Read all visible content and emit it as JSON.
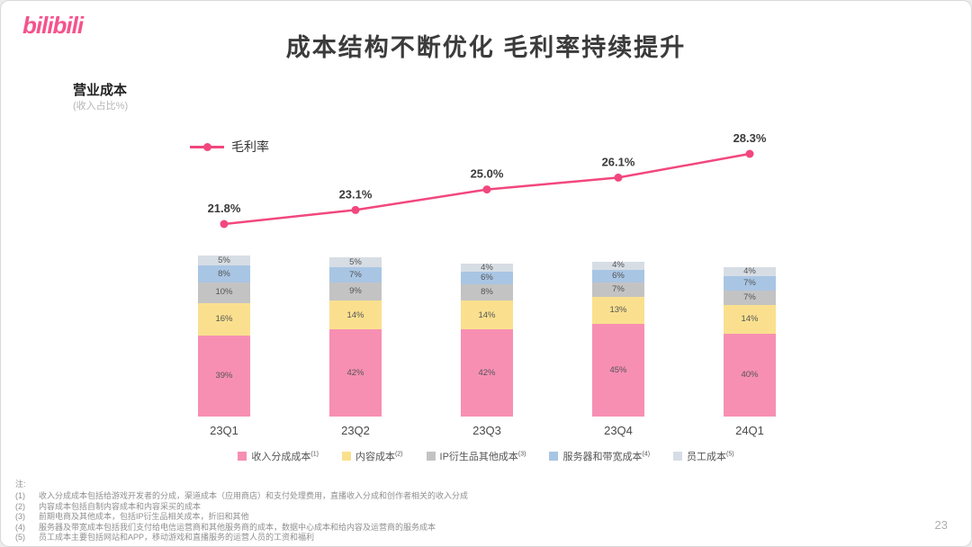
{
  "header": {
    "logo": "bilibili",
    "title": "成本结构不断优化 毛利率持续提升"
  },
  "chart": {
    "label": "营业成本",
    "sublabel": "(收入占比%)"
  },
  "chart_data": {
    "type": "combo",
    "categories": [
      "23Q1",
      "23Q2",
      "23Q3",
      "23Q4",
      "24Q1"
    ],
    "line": {
      "name": "毛利率",
      "values": [
        21.8,
        23.1,
        25.0,
        26.1,
        28.3
      ],
      "labels": [
        "21.8%",
        "23.1%",
        "25.0%",
        "26.1%",
        "28.3%"
      ],
      "color": "#f2477e"
    },
    "bar_series": [
      {
        "key": "revenue-sharing-cost",
        "name": "收入分成成本",
        "sup": "(1)",
        "values": [
          39,
          42,
          42,
          45,
          40
        ],
        "color": "#f78fb3"
      },
      {
        "key": "content-cost",
        "name": "内容成本",
        "sup": "(2)",
        "values": [
          16,
          14,
          14,
          13,
          14
        ],
        "color": "#fae08e"
      },
      {
        "key": "ip-derivatives-other-cost",
        "name": "IP衍生品其他成本",
        "sup": "(3)",
        "values": [
          10,
          9,
          8,
          7,
          7
        ],
        "color": "#c3c3c3"
      },
      {
        "key": "server-bandwidth-cost",
        "name": "服务器和带宽成本",
        "sup": "(4)",
        "values": [
          8,
          7,
          6,
          6,
          7
        ],
        "color": "#a8c5e4"
      },
      {
        "key": "staff-cost",
        "name": "员工成本",
        "sup": "(5)",
        "values": [
          5,
          5,
          4,
          4,
          4
        ],
        "color": "#d7dde4"
      }
    ],
    "ylabel": "收入占比%",
    "grid": false,
    "legend_position": "bottom"
  },
  "footnotes": {
    "label": "注:",
    "items": [
      {
        "marker": "(1)",
        "text": "收入分成成本包括给游戏开发者的分成，渠道成本（应用商店）和支付处理费用，直播收入分成和创作者相关的收入分成"
      },
      {
        "marker": "(2)",
        "text": "内容成本包括自制内容成本和内容采买的成本"
      },
      {
        "marker": "(3)",
        "text": "前期电商及其他成本，包括IP衍生品相关成本，折旧和其他"
      },
      {
        "marker": "(4)",
        "text": "服务器及带宽成本包括我们支付给电信运营商和其他服务商的成本，数据中心成本和给内容及运营商的服务成本"
      },
      {
        "marker": "(5)",
        "text": "员工成本主要包括网站和APP，移动游戏和直播服务的运营人员的工资和福利"
      }
    ]
  },
  "page_number": "23"
}
